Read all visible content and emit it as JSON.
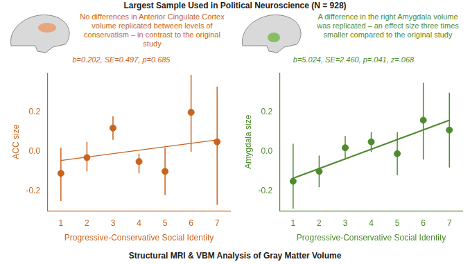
{
  "title": "Largest Sample Used in Political Neuroscience (N = 928)",
  "footer": "Structural MRI & VBM Analysis of Gray Matter Volume",
  "chart_data": [
    {
      "type": "scatter",
      "annotation": "No differences in Anterior Cingulate Cortex volume replicated between levels of conservatism – in contrast to the original study",
      "subtitle": "b=0.202, SE=0.497, p=0.685",
      "x_label": "Progressive-Conservative Social Identity",
      "y_label": "ACC size",
      "color": "#c8641e",
      "grid": false,
      "x": [
        1,
        2,
        3,
        4,
        5,
        6,
        7
      ],
      "xlim": [
        0.5,
        7.5
      ],
      "xticks": [
        1,
        2,
        3,
        4,
        5,
        6,
        7
      ],
      "ylim": [
        -0.3,
        0.4
      ],
      "yticks": [
        -0.2,
        {
          "value": 0,
          "label": "0.0"
        },
        0.2
      ],
      "series": [
        {
          "type": "scatter",
          "marker": "circle",
          "values": [
            -0.11,
            -0.03,
            0.12,
            -0.05,
            -0.1,
            0.2,
            0.05
          ],
          "ci_low": [
            -0.25,
            -0.1,
            0.06,
            -0.11,
            -0.22,
            0.0,
            -0.27
          ],
          "ci_high": [
            0.02,
            0.05,
            0.18,
            -0.01,
            0.02,
            0.39,
            0.33
          ]
        },
        {
          "type": "line",
          "x": [
            1,
            7
          ],
          "values": [
            -0.045,
            0.06
          ]
        }
      ]
    },
    {
      "type": "scatter",
      "annotation": "A difference in the right Amygdala volume was replicated – an effect size three times smaller compared to the original study",
      "subtitle": "b=5.024, SE=2.460, p=.041, z=.068",
      "x_label": "Progressive-Conservative Social Identity",
      "y_label": "Amygdala size",
      "color": "#4e8a2e",
      "grid": false,
      "x": [
        1,
        2,
        3,
        4,
        5,
        6,
        7
      ],
      "xlim": [
        0.5,
        7.5
      ],
      "xticks": [
        1,
        2,
        3,
        4,
        5,
        6,
        7
      ],
      "ylim": [
        -0.3,
        0.4
      ],
      "yticks": [
        -0.2,
        {
          "value": 0,
          "label": "0.0"
        },
        0.2
      ],
      "series": [
        {
          "type": "scatter",
          "marker": "circle",
          "values": [
            -0.15,
            -0.1,
            0.02,
            0.05,
            -0.01,
            0.16,
            0.11
          ],
          "ci_low": [
            -0.29,
            -0.18,
            -0.04,
            0.0,
            -0.12,
            -0.04,
            -0.08
          ],
          "ci_high": [
            0.04,
            -0.02,
            0.08,
            0.1,
            0.1,
            0.35,
            0.3
          ]
        },
        {
          "type": "line",
          "x": [
            1,
            7
          ],
          "values": [
            -0.135,
            0.16
          ]
        }
      ]
    }
  ]
}
